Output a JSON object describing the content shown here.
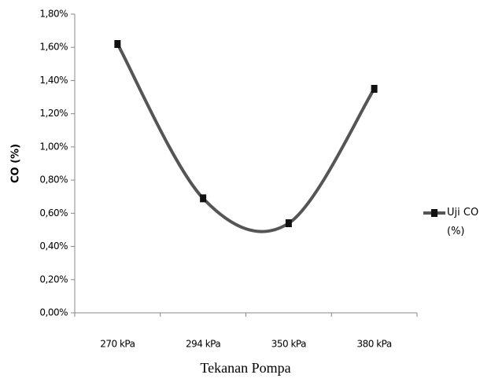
{
  "chart_data": {
    "type": "line",
    "x_label": "Tekanan Pompa",
    "y_label": "CO (%)",
    "categories": [
      "270 kPa",
      "294 kPa",
      "350 kPa",
      "380 kPa"
    ],
    "series": [
      {
        "name": "Uji CO (%)",
        "color": "#555555",
        "values": [
          1.62,
          0.69,
          0.54,
          1.35
        ]
      }
    ],
    "ylim": [
      0,
      1.8
    ],
    "yticks": [
      {
        "value": 0,
        "label": "0,00%"
      },
      {
        "value": 0.2,
        "label": "0,20%"
      },
      {
        "value": 0.4,
        "label": "0,40%"
      },
      {
        "value": 0.6,
        "label": "0,60%"
      },
      {
        "value": 0.8,
        "label": "0,80%"
      },
      {
        "value": 1.0,
        "label": "1,00%"
      },
      {
        "value": 1.2,
        "label": "1,20%"
      },
      {
        "value": 1.4,
        "label": "1,40%"
      },
      {
        "value": 1.6,
        "label": "1,60%"
      },
      {
        "value": 1.8,
        "label": "1,80%"
      }
    ],
    "smooth": true,
    "legend": "right"
  }
}
